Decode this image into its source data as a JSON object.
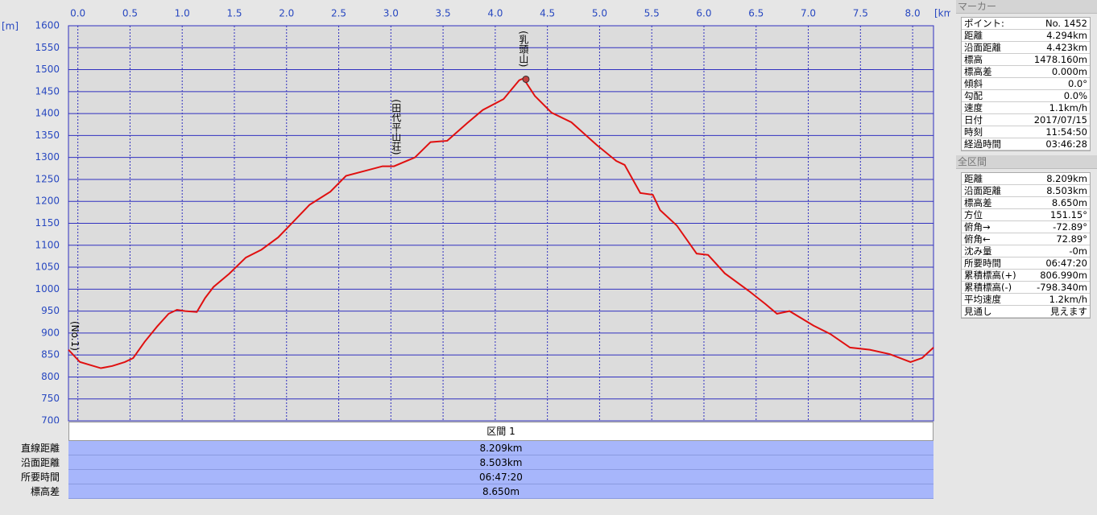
{
  "chart_data": {
    "type": "line",
    "x_unit": "[km]",
    "y_unit": "[m]",
    "xlim": [
      -0.09,
      8.2
    ],
    "ylim": [
      700,
      1600
    ],
    "xticks": [
      {
        "value": 0,
        "label": "0.0"
      },
      0.5,
      {
        "value": 1,
        "label": "1.0"
      },
      1.5,
      {
        "value": 2,
        "label": "2.0"
      },
      2.5,
      {
        "value": 3,
        "label": "3.0"
      },
      3.5,
      {
        "value": 4,
        "label": "4.0"
      },
      4.5,
      {
        "value": 5,
        "label": "5.0"
      },
      5.5,
      {
        "value": 6,
        "label": "6.0"
      },
      6.5,
      {
        "value": 7,
        "label": "7.0"
      },
      7.5,
      {
        "value": 8,
        "label": "8.0"
      }
    ],
    "yticks": [
      700,
      750,
      800,
      850,
      900,
      950,
      1000,
      1050,
      1100,
      1150,
      1200,
      1250,
      1300,
      1350,
      1400,
      1450,
      1500,
      1550,
      1600
    ],
    "grid": true,
    "series": [
      {
        "color": "#e01010",
        "x": [
          -0.09,
          0.02,
          0.22,
          0.33,
          0.45,
          0.53,
          0.64,
          0.76,
          0.87,
          0.95,
          1.03,
          1.14,
          1.22,
          1.3,
          1.45,
          1.61,
          1.76,
          1.92,
          2.07,
          2.22,
          2.42,
          2.57,
          2.76,
          2.92,
          3.03,
          3.11,
          3.23,
          3.38,
          3.54,
          3.73,
          3.88,
          4.08,
          4.23,
          4.27,
          4.38,
          4.54,
          4.73,
          4.97,
          5.16,
          5.24,
          5.39,
          5.51,
          5.58,
          5.74,
          5.93,
          6.04,
          6.2,
          6.43,
          6.59,
          6.7,
          6.82,
          7.05,
          7.21,
          7.4,
          7.59,
          7.78,
          7.98,
          8.09,
          8.2
        ],
        "values": [
          862,
          834,
          820,
          825,
          834,
          843,
          880,
          915,
          944,
          953,
          950,
          948,
          980,
          1005,
          1035,
          1072,
          1090,
          1118,
          1155,
          1192,
          1222,
          1258,
          1270,
          1280,
          1280,
          1288,
          1300,
          1335,
          1338,
          1378,
          1408,
          1433,
          1476,
          1480,
          1440,
          1402,
          1380,
          1329,
          1292,
          1283,
          1219,
          1215,
          1180,
          1145,
          1081,
          1078,
          1036,
          996,
          966,
          944,
          950,
          917,
          898,
          867,
          862,
          852,
          834,
          843,
          867
        ]
      }
    ],
    "annotations": [
      {
        "text": "(No.1)",
        "x": -0.03
      },
      {
        "text": "(田代平山荘)",
        "x": 3.05
      },
      {
        "text": "(乳頭山)",
        "x": 4.27
      }
    ],
    "marker": {
      "x": 4.294,
      "y": 1478.16
    }
  },
  "marker_panel": {
    "title": "マーカー",
    "rows": [
      [
        "ポイント:",
        "No. 1452"
      ],
      [
        "距離",
        "4.294km"
      ],
      [
        "沿面距離",
        "4.423km"
      ],
      [
        "標高",
        "1478.160m"
      ],
      [
        "標高差",
        "0.000m"
      ],
      [
        "傾斜",
        "0.0°"
      ],
      [
        "勾配",
        "0.0%"
      ],
      [
        "速度",
        "1.1km/h"
      ],
      [
        "日付",
        "2017/07/15"
      ],
      [
        "時刻",
        "11:54:50"
      ],
      [
        "経過時間",
        "03:46:28"
      ]
    ]
  },
  "total_panel": {
    "title": "全区間",
    "rows": [
      [
        "距離",
        "8.209km"
      ],
      [
        "沿面距離",
        "8.503km"
      ],
      [
        "標高差",
        "8.650m"
      ],
      [
        "方位",
        "151.15°"
      ],
      [
        "俯角→",
        "-72.89°"
      ],
      [
        "俯角←",
        "72.89°"
      ],
      [
        "沈み量",
        "-0m"
      ],
      [
        "所要時間",
        "06:47:20"
      ],
      [
        "累積標高(+)",
        "806.990m"
      ],
      [
        "累積標高(-)",
        "-798.340m"
      ],
      [
        "平均速度",
        "1.2km/h"
      ],
      [
        "見通し",
        "見えます"
      ]
    ]
  },
  "section_table": {
    "header": "区間 1",
    "rows": [
      [
        "直線距離",
        "8.209km"
      ],
      [
        "沿面距離",
        "8.503km"
      ],
      [
        "所要時間",
        "06:47:20"
      ],
      [
        "標高差",
        "8.650m"
      ]
    ]
  }
}
